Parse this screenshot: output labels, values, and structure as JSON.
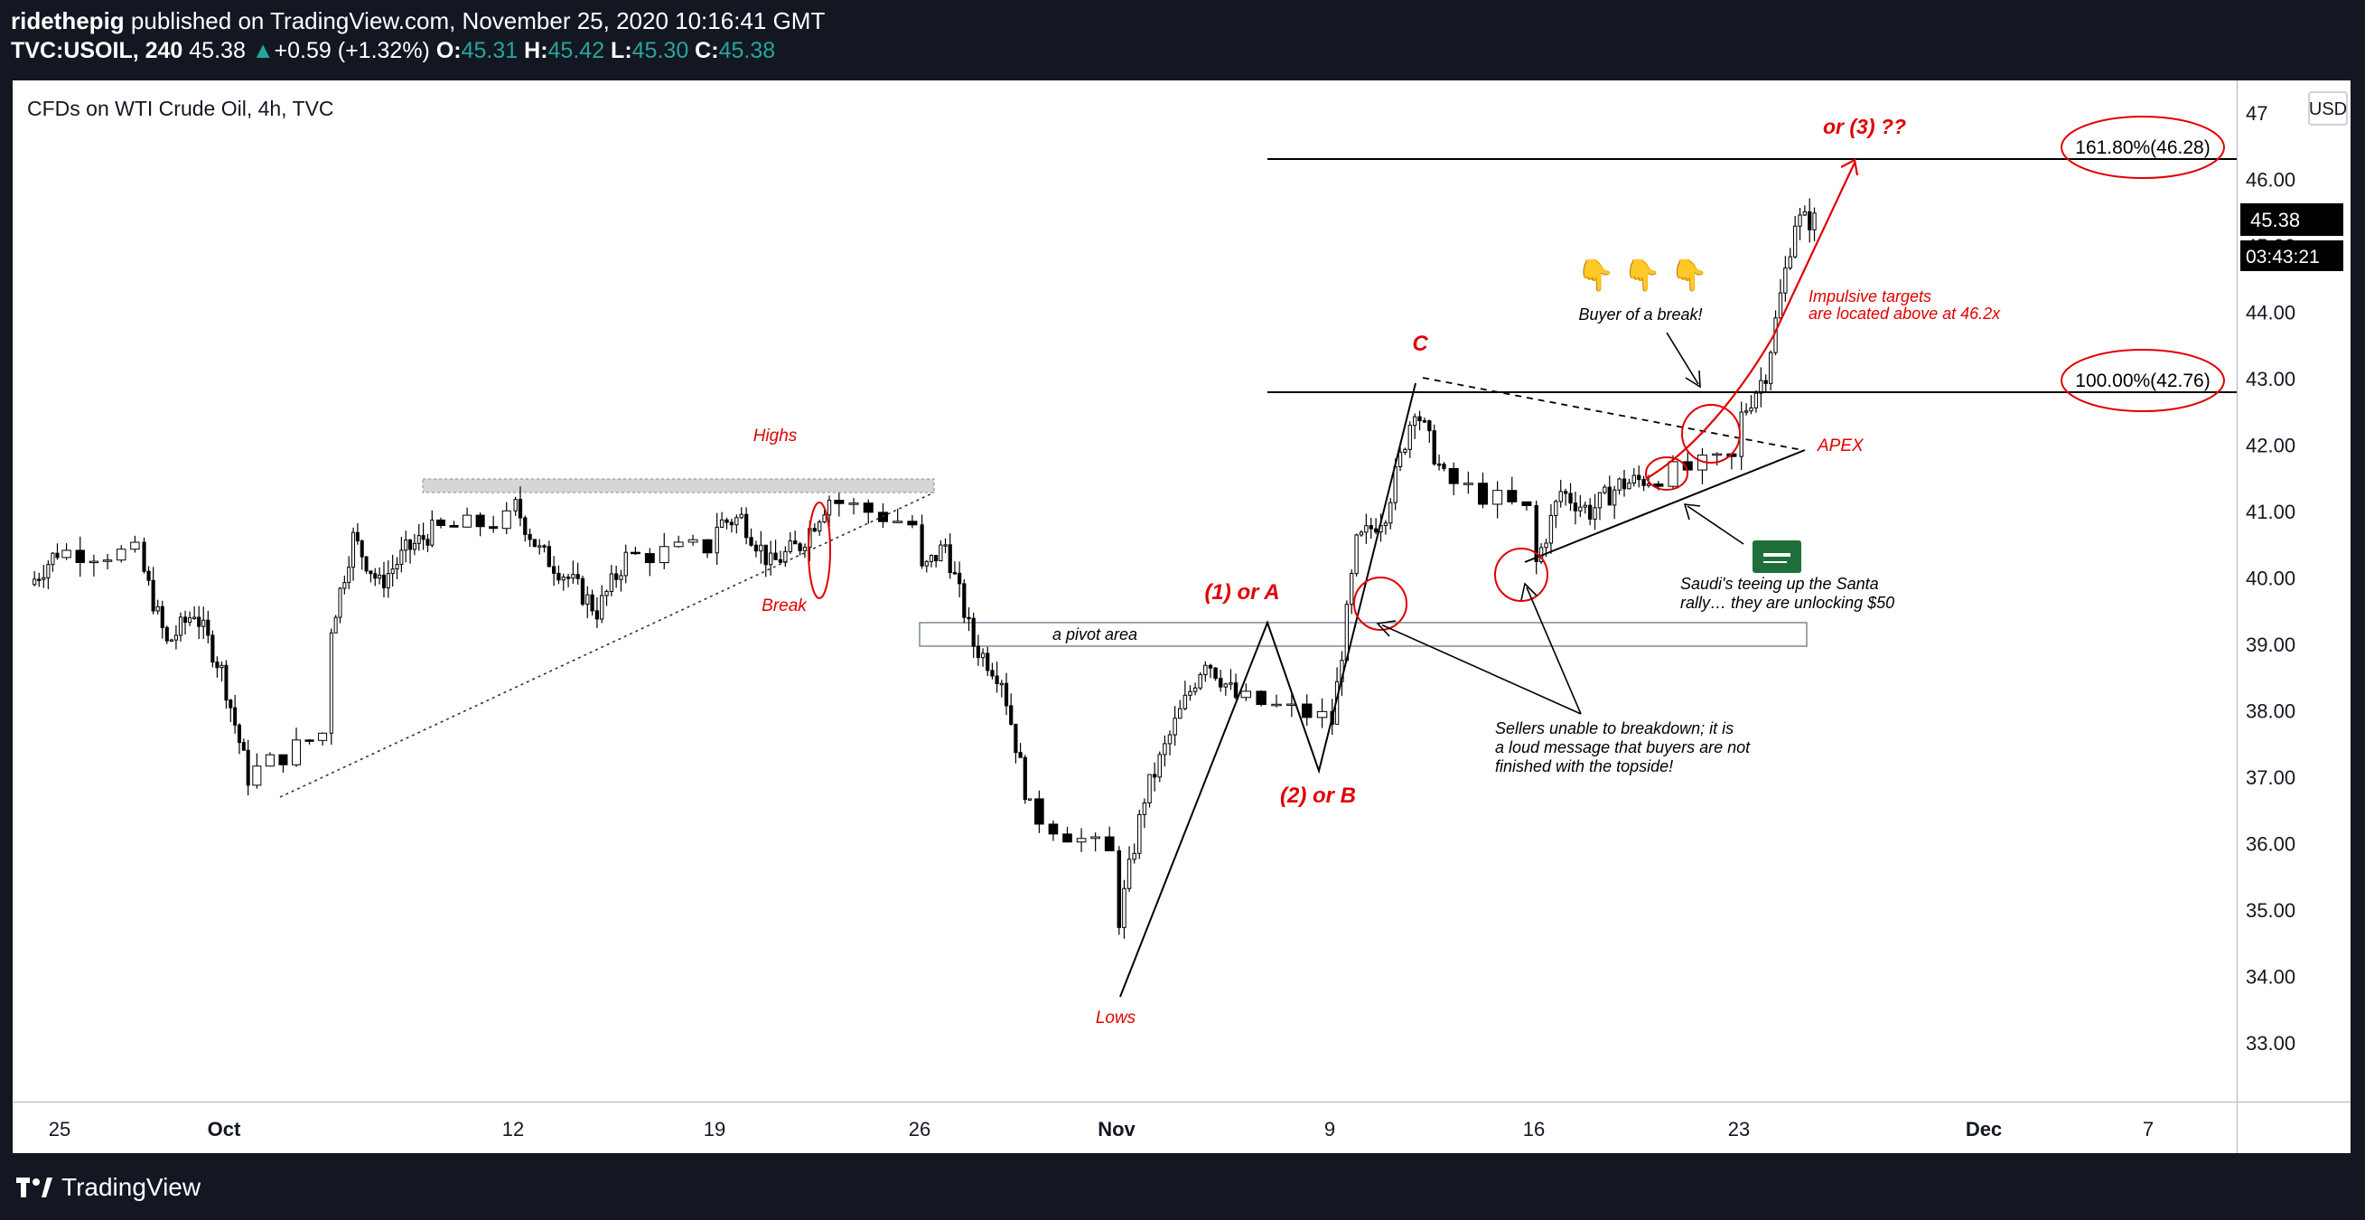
{
  "header": {
    "author": "ridethepig",
    "published_text": "published on TradingView.com, November 25, 2020 10:16:41 GMT",
    "symbol": "TVC:USOIL, 240",
    "last": "45.38",
    "change": "+0.59 (+1.32%)",
    "o_label": "O:",
    "o": "45.31",
    "h_label": "H:",
    "h": "45.42",
    "l_label": "L:",
    "l": "45.30",
    "c_label": "C:",
    "c": "45.38"
  },
  "chart_data": {
    "type": "candlestick",
    "title": "CFDs on WTI Crude Oil, 4h, TVC",
    "currency": "USD",
    "ylim": [
      32.1,
      47.0
    ],
    "y_ticks": [
      "33.00",
      "34.00",
      "35.00",
      "36.00",
      "37.00",
      "38.00",
      "39.00",
      "40.00",
      "41.00",
      "42.00",
      "43.00",
      "44.00",
      "45.00",
      "46.00",
      "47"
    ],
    "x_ticks": [
      "25",
      "Oct",
      "12",
      "19",
      "26",
      "Nov",
      "9",
      "16",
      "23",
      "Dec",
      "7"
    ],
    "x_ticks_bold": [
      "Oct",
      "Nov",
      "Dec"
    ],
    "price_waypoints": [
      [
        "2020-09-24",
        39.9
      ],
      [
        "2020-09-25",
        40.4
      ],
      [
        "2020-09-28",
        40.3
      ],
      [
        "2020-09-29",
        39.0
      ],
      [
        "2020-09-30",
        39.5
      ],
      [
        "2020-10-01",
        38.6
      ],
      [
        "2020-10-02",
        37.0
      ],
      [
        "2020-10-05",
        39.0
      ],
      [
        "2020-10-06",
        40.6
      ],
      [
        "2020-10-07",
        39.9
      ],
      [
        "2020-10-08",
        40.4
      ],
      [
        "2020-10-09",
        40.7
      ],
      [
        "2020-10-12",
        41.2
      ],
      [
        "2020-10-13",
        40.4
      ],
      [
        "2020-10-14",
        40.0
      ],
      [
        "2020-10-15",
        39.5
      ],
      [
        "2020-10-16",
        40.3
      ],
      [
        "2020-10-19",
        40.8
      ],
      [
        "2020-10-20",
        40.9
      ],
      [
        "2020-10-21",
        40.2
      ],
      [
        "2020-10-22",
        40.5
      ],
      [
        "2020-10-23",
        41.2
      ],
      [
        "2020-10-26",
        40.0
      ],
      [
        "2020-10-27",
        40.5
      ],
      [
        "2020-10-28",
        39.0
      ],
      [
        "2020-10-29",
        38.5
      ],
      [
        "2020-10-30",
        36.5
      ],
      [
        "2020-11-02",
        34.5
      ],
      [
        "2020-11-03",
        36.7
      ],
      [
        "2020-11-04",
        37.8
      ],
      [
        "2020-11-05",
        38.8
      ],
      [
        "2020-11-06",
        38.2
      ],
      [
        "2020-11-09",
        37.3
      ],
      [
        "2020-11-10",
        40.5
      ],
      [
        "2020-11-11",
        41.0
      ],
      [
        "2020-11-12",
        42.6
      ],
      [
        "2020-11-13",
        41.5
      ],
      [
        "2020-11-16",
        40.0
      ],
      [
        "2020-11-17",
        41.3
      ],
      [
        "2020-11-18",
        41.0
      ],
      [
        "2020-11-19",
        41.4
      ],
      [
        "2020-11-20",
        41.5
      ],
      [
        "2020-11-23",
        42.3
      ],
      [
        "2020-11-24",
        43.1
      ],
      [
        "2020-11-25",
        45.38
      ]
    ],
    "last_price": "45.38",
    "countdown": "03:43:21",
    "fib_levels": [
      {
        "label": "161.80%(46.28)",
        "price": 46.28
      },
      {
        "label": "100.00%(42.76)",
        "price": 42.76
      }
    ],
    "annotations": {
      "highs": "Highs",
      "break": "Break",
      "lows": "Lows",
      "wave_1a": "(1) or A",
      "wave_2b": "(2) or B",
      "wave_c": "C",
      "wave_3": "or (3) ??",
      "pivot": "a pivot area",
      "apex": "APEX",
      "buyer": "Buyer of a break!",
      "impulsive_1": "Impulsive targets",
      "impulsive_2": "are located above at 46.2x",
      "saudi_1": "Saudi's teeing up the Santa",
      "saudi_2": "rally… they are unlocking $50",
      "sellers_1": "Sellers unable to breakdown; it is",
      "sellers_2": "a loud message that buyers are not",
      "sellers_3": "finished with the topside!",
      "pointing_emoji": "👇 👇 👇"
    }
  },
  "footer": {
    "brand": "TradingView"
  },
  "colors": {
    "up": "#ffffff",
    "down": "#000000",
    "red": "#e00000",
    "background": "#131722"
  }
}
